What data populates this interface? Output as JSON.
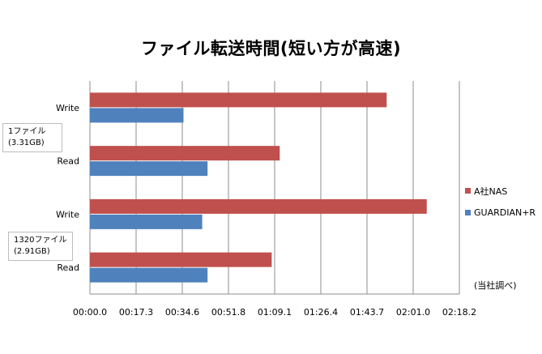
{
  "chart_data": {
    "type": "bar",
    "orientation": "horizontal",
    "title": "ファイル転送時間(短い方が高速)",
    "categories": [
      "Write",
      "Read",
      "Write",
      "Read"
    ],
    "groups": [
      {
        "line1": "1ファイル",
        "line2": "(3.31GB)",
        "categories": [
          "Write",
          "Read"
        ]
      },
      {
        "line1": "1320ファイル",
        "line2": "(2.91GB)",
        "categories": [
          "Write",
          "Read"
        ]
      }
    ],
    "x_ticks": [
      "00:00.0",
      "00:17.3",
      "00:34.6",
      "00:51.8",
      "01:09.1",
      "01:26.4",
      "01:43.7",
      "02:01.0",
      "02:18.2"
    ],
    "xlim_seconds": [
      0,
      138.2
    ],
    "series": [
      {
        "name": "A社NAS",
        "color": "#c0504d",
        "values_seconds": [
          111,
          71,
          126,
          68
        ]
      },
      {
        "name": "GUARDIAN+R",
        "color": "#4f81bd",
        "values_seconds": [
          35,
          44,
          42,
          44
        ]
      }
    ],
    "grid": true,
    "legend_position": "right",
    "note": "(当社調べ)"
  }
}
